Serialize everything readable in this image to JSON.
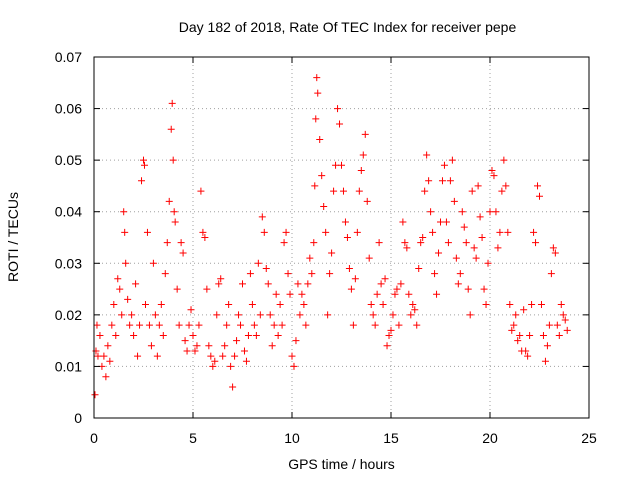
{
  "chart_data": {
    "type": "scatter",
    "title": "Day 182 of 2018, Rate Of TEC Index for receiver pepe",
    "xlabel": "GPS time / hours",
    "ylabel": "ROTI / TECUs",
    "xlim": [
      0,
      25
    ],
    "ylim": [
      0,
      0.07
    ],
    "x_ticks": [
      "0",
      "5",
      "10",
      "15",
      "20",
      "25"
    ],
    "y_ticks": [
      "0",
      "0.01",
      "0.02",
      "0.03",
      "0.04",
      "0.05",
      "0.06",
      "0.07"
    ],
    "grid": true,
    "marker": "+",
    "marker_color": "#ff0000",
    "series": [
      {
        "name": "ROTI",
        "x": [
          0.05,
          0.1,
          0.15,
          0.2,
          0.3,
          0.4,
          0.5,
          0.6,
          0.7,
          0.8,
          0.9,
          1.0,
          1.1,
          1.2,
          1.3,
          1.4,
          1.5,
          1.55,
          1.6,
          1.7,
          1.8,
          1.9,
          2.0,
          2.1,
          2.2,
          2.3,
          2.4,
          2.5,
          2.55,
          2.6,
          2.7,
          2.8,
          2.9,
          3.0,
          3.1,
          3.2,
          3.3,
          3.4,
          3.5,
          3.6,
          3.7,
          3.8,
          3.9,
          3.95,
          4.0,
          4.05,
          4.1,
          4.2,
          4.3,
          4.4,
          4.5,
          4.6,
          4.7,
          4.8,
          4.9,
          5.0,
          5.1,
          5.2,
          5.3,
          5.4,
          5.5,
          5.6,
          5.7,
          5.8,
          5.9,
          6.0,
          6.1,
          6.2,
          6.3,
          6.4,
          6.5,
          6.6,
          6.7,
          6.8,
          6.9,
          7.0,
          7.1,
          7.2,
          7.3,
          7.4,
          7.5,
          7.6,
          7.7,
          7.8,
          7.9,
          8.0,
          8.1,
          8.2,
          8.3,
          8.4,
          8.5,
          8.6,
          8.7,
          8.8,
          8.9,
          9.0,
          9.1,
          9.2,
          9.3,
          9.4,
          9.5,
          9.6,
          9.7,
          9.8,
          9.9,
          10.0,
          10.1,
          10.2,
          10.3,
          10.4,
          10.5,
          10.6,
          10.7,
          10.8,
          10.9,
          11.0,
          11.1,
          11.15,
          11.2,
          11.25,
          11.3,
          11.4,
          11.5,
          11.6,
          11.7,
          11.8,
          11.9,
          12.0,
          12.1,
          12.2,
          12.3,
          12.4,
          12.5,
          12.6,
          12.7,
          12.8,
          12.9,
          13.0,
          13.1,
          13.2,
          13.3,
          13.4,
          13.5,
          13.6,
          13.7,
          13.8,
          13.9,
          14.0,
          14.1,
          14.2,
          14.3,
          14.4,
          14.5,
          14.6,
          14.7,
          14.8,
          14.9,
          15.0,
          15.1,
          15.2,
          15.3,
          15.4,
          15.5,
          15.6,
          15.7,
          15.8,
          15.9,
          16.0,
          16.1,
          16.2,
          16.3,
          16.4,
          16.5,
          16.6,
          16.7,
          16.8,
          16.9,
          17.0,
          17.1,
          17.2,
          17.3,
          17.4,
          17.5,
          17.6,
          17.7,
          17.8,
          17.9,
          18.0,
          18.1,
          18.2,
          18.3,
          18.4,
          18.5,
          18.6,
          18.7,
          18.8,
          18.9,
          19.0,
          19.1,
          19.2,
          19.3,
          19.4,
          19.5,
          19.6,
          19.7,
          19.8,
          19.9,
          20.0,
          20.1,
          20.2,
          20.3,
          20.4,
          20.5,
          20.6,
          20.7,
          20.8,
          20.9,
          21.0,
          21.1,
          21.2,
          21.3,
          21.4,
          21.5,
          21.6,
          21.7,
          21.8,
          21.9,
          22.0,
          22.1,
          22.2,
          22.3,
          22.4,
          22.5,
          22.6,
          22.7,
          22.8,
          22.9,
          23.0,
          23.1,
          23.2,
          23.3,
          23.4,
          23.5,
          23.6,
          23.7,
          23.8,
          23.9
        ],
        "y": [
          0.0045,
          0.013,
          0.018,
          0.012,
          0.016,
          0.01,
          0.012,
          0.008,
          0.014,
          0.011,
          0.018,
          0.022,
          0.016,
          0.027,
          0.025,
          0.02,
          0.04,
          0.036,
          0.03,
          0.023,
          0.018,
          0.02,
          0.016,
          0.026,
          0.012,
          0.018,
          0.046,
          0.05,
          0.049,
          0.022,
          0.036,
          0.018,
          0.014,
          0.03,
          0.02,
          0.012,
          0.018,
          0.022,
          0.016,
          0.028,
          0.034,
          0.042,
          0.056,
          0.061,
          0.05,
          0.04,
          0.038,
          0.025,
          0.018,
          0.034,
          0.032,
          0.015,
          0.013,
          0.018,
          0.021,
          0.016,
          0.013,
          0.014,
          0.018,
          0.044,
          0.036,
          0.035,
          0.025,
          0.014,
          0.012,
          0.01,
          0.011,
          0.02,
          0.026,
          0.027,
          0.012,
          0.014,
          0.018,
          0.022,
          0.01,
          0.006,
          0.012,
          0.015,
          0.02,
          0.018,
          0.026,
          0.013,
          0.011,
          0.016,
          0.028,
          0.022,
          0.018,
          0.016,
          0.03,
          0.02,
          0.039,
          0.036,
          0.029,
          0.026,
          0.02,
          0.014,
          0.018,
          0.024,
          0.016,
          0.022,
          0.018,
          0.034,
          0.036,
          0.028,
          0.024,
          0.012,
          0.01,
          0.015,
          0.026,
          0.02,
          0.024,
          0.022,
          0.018,
          0.026,
          0.031,
          0.028,
          0.034,
          0.045,
          0.058,
          0.066,
          0.063,
          0.054,
          0.047,
          0.041,
          0.036,
          0.02,
          0.028,
          0.032,
          0.044,
          0.049,
          0.06,
          0.057,
          0.049,
          0.044,
          0.038,
          0.035,
          0.029,
          0.025,
          0.018,
          0.027,
          0.036,
          0.044,
          0.048,
          0.051,
          0.055,
          0.042,
          0.031,
          0.022,
          0.02,
          0.018,
          0.024,
          0.034,
          0.026,
          0.022,
          0.027,
          0.014,
          0.016,
          0.017,
          0.02,
          0.024,
          0.025,
          0.018,
          0.026,
          0.038,
          0.034,
          0.033,
          0.024,
          0.02,
          0.022,
          0.021,
          0.018,
          0.029,
          0.034,
          0.035,
          0.044,
          0.051,
          0.046,
          0.04,
          0.036,
          0.028,
          0.024,
          0.032,
          0.038,
          0.046,
          0.049,
          0.038,
          0.034,
          0.046,
          0.05,
          0.042,
          0.031,
          0.026,
          0.028,
          0.04,
          0.037,
          0.034,
          0.025,
          0.02,
          0.044,
          0.033,
          0.031,
          0.045,
          0.039,
          0.035,
          0.025,
          0.022,
          0.03,
          0.04,
          0.048,
          0.047,
          0.04,
          0.033,
          0.036,
          0.044,
          0.05,
          0.045,
          0.036,
          0.022,
          0.017,
          0.018,
          0.02,
          0.015,
          0.016,
          0.013,
          0.021,
          0.013,
          0.012,
          0.016,
          0.022,
          0.036,
          0.034,
          0.045,
          0.043,
          0.022,
          0.016,
          0.011,
          0.014,
          0.018,
          0.028,
          0.033,
          0.032,
          0.018,
          0.016,
          0.022,
          0.02,
          0.019,
          0.017
        ]
      }
    ]
  }
}
